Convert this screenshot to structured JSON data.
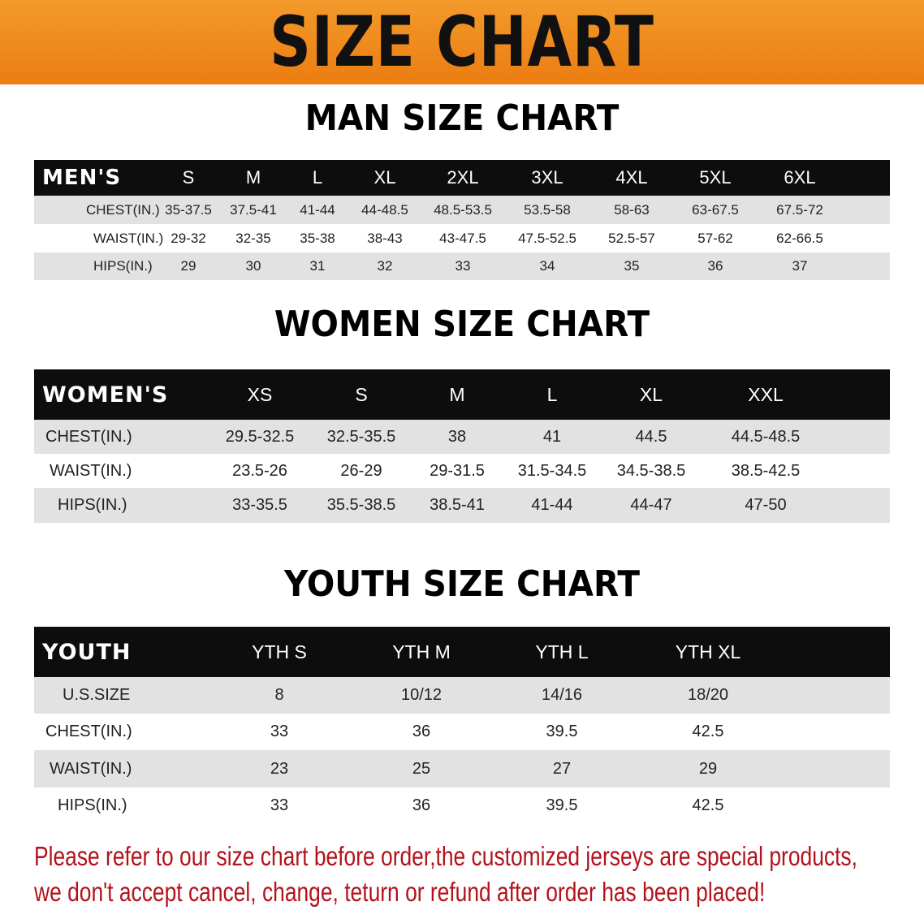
{
  "banner": {
    "title": "SIZE CHART",
    "color": "#ec7d12"
  },
  "men": {
    "title": "MAN SIZE CHART",
    "header": [
      "MEN'S",
      "S",
      "M",
      "L",
      "XL",
      "2XL",
      "3XL",
      "4XL",
      "5XL",
      "6XL"
    ],
    "rows": [
      [
        "CHEST(IN.)",
        "35-37.5",
        "37.5-41",
        "41-44",
        "44-48.5",
        "48.5-53.5",
        "53.5-58",
        "58-63",
        "63-67.5",
        "67.5-72"
      ],
      [
        "WAIST(IN.)",
        "29-32",
        "32-35",
        "35-38",
        "38-43",
        "43-47.5",
        "47.5-52.5",
        "52.5-57",
        "57-62",
        "62-66.5"
      ],
      [
        "HIPS(IN.)",
        "29",
        "30",
        "31",
        "32",
        "33",
        "34",
        "35",
        "36",
        "37"
      ]
    ]
  },
  "women": {
    "title": "WOMEN SIZE CHART",
    "header": [
      "WOMEN'S",
      "XS",
      "S",
      "M",
      "L",
      "XL",
      "XXL"
    ],
    "rows": [
      [
        "CHEST(IN.)",
        "29.5-32.5",
        "32.5-35.5",
        "38",
        "41",
        "44.5",
        "44.5-48.5"
      ],
      [
        "WAIST(IN.)",
        "23.5-26",
        "26-29",
        "29-31.5",
        "31.5-34.5",
        "34.5-38.5",
        "38.5-42.5"
      ],
      [
        "HIPS(IN.)",
        "33-35.5",
        "35.5-38.5",
        "38.5-41",
        "41-44",
        "44-47",
        "47-50"
      ]
    ]
  },
  "youth": {
    "title": "YOUTH SIZE CHART",
    "header": [
      "YOUTH",
      "YTH S",
      "YTH M",
      "YTH L",
      "YTH XL"
    ],
    "rows": [
      [
        "U.S.SIZE",
        "8",
        "10/12",
        "14/16",
        "18/20"
      ],
      [
        "CHEST(IN.)",
        "33",
        "36",
        "39.5",
        "42.5"
      ],
      [
        "WAIST(IN.)",
        "23",
        "25",
        "27",
        "29"
      ],
      [
        "HIPS(IN.)",
        "33",
        "36",
        "39.5",
        "42.5"
      ]
    ]
  },
  "note": {
    "line1": "Please refer to our size chart before order,the customized jerseys are special products,",
    "line2": "we don't accept cancel, change, teturn or refund after order has been placed!",
    "color": "#b3121c"
  }
}
